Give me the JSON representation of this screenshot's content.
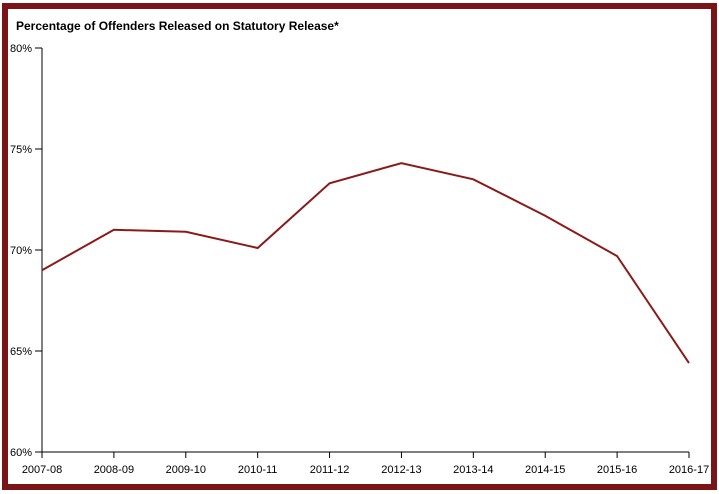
{
  "title": "Percentage of Offenders Released on Statutory Release*",
  "frame": {
    "border_color": "#7a1416",
    "background_color": "#ffffff"
  },
  "chart_data": {
    "type": "line",
    "title": "Percentage of Offenders Released on Statutory Release*",
    "categories": [
      "2007-08",
      "2008-09",
      "2009-10",
      "2010-11",
      "2011-12",
      "2012-13",
      "2013-14",
      "2014-15",
      "2015-16",
      "2016-17"
    ],
    "values": [
      69.0,
      71.0,
      70.9,
      70.1,
      73.3,
      74.3,
      73.5,
      71.7,
      69.7,
      64.4
    ],
    "xlabel": "",
    "ylabel": "",
    "ylim": [
      60,
      80
    ],
    "y_ticks": [
      60,
      65,
      70,
      75,
      80
    ],
    "y_tick_labels": [
      "60%",
      "65%",
      "70%",
      "75%",
      "80%"
    ],
    "x_tick_labels": [
      "2007-08",
      "2008-09",
      "2009-10",
      "2010-11",
      "2011-12",
      "2012-13",
      "2013-14",
      "2014-15",
      "2015-16",
      "2016-17"
    ],
    "line_color": "#8b1a1a",
    "axis_color": "#000000",
    "grid": false,
    "legend_position": "none"
  }
}
